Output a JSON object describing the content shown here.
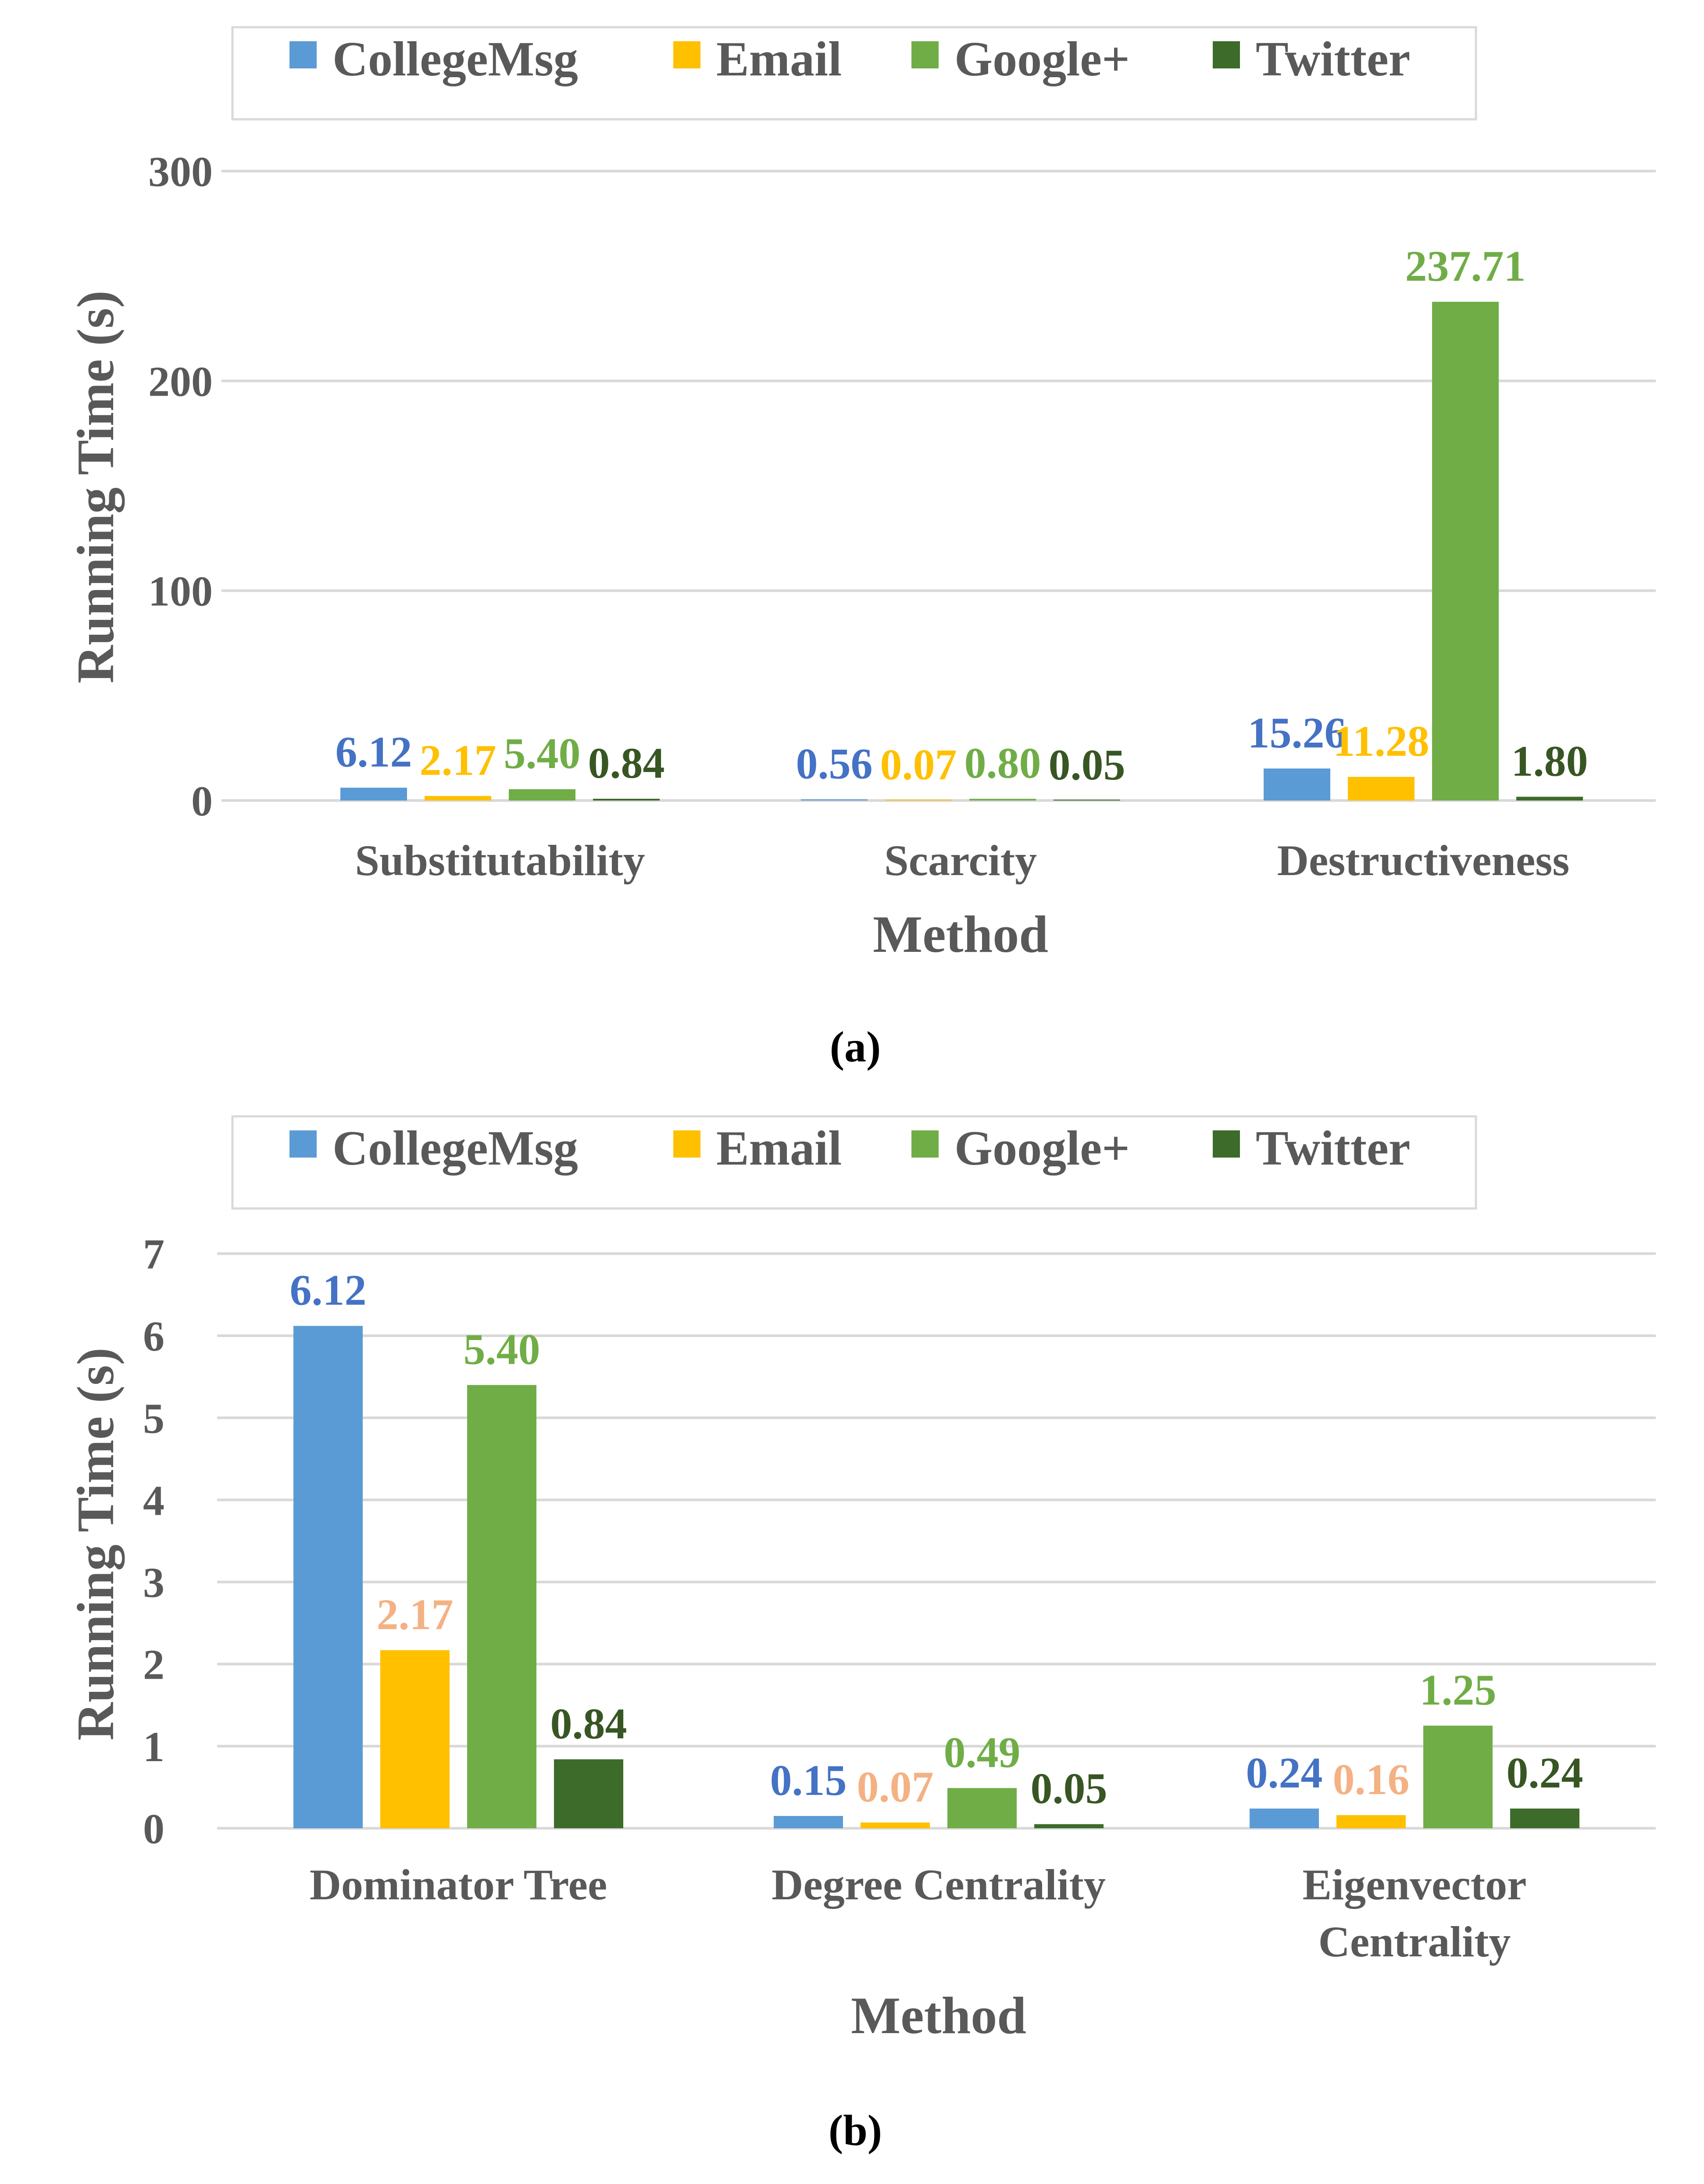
{
  "colors": {
    "CollegeMsg": "#5b9bd5",
    "Email": "#ffc000",
    "Google+": "#70ad47",
    "Twitter": "#3d6b2a",
    "label_blue": "#4472c4",
    "label_orange": "#f4b183",
    "label_gold": "#ffc000",
    "label_green": "#70ad47",
    "label_darkgreen": "#375623",
    "grid": "#d9d9d9",
    "axis_text": "#595959"
  },
  "chart_data": [
    {
      "id": "a",
      "type": "bar",
      "caption": "(a)",
      "title": "",
      "xlabel": "Method",
      "ylabel": "Running Time (s)",
      "ylim": [
        0,
        300
      ],
      "yticks": [
        "0",
        "100",
        "200",
        "300"
      ],
      "ytick_values": [
        0,
        100,
        200,
        300
      ],
      "legend": [
        "CollegeMsg",
        "Email",
        "Google+",
        "Twitter"
      ],
      "legend_position": "top",
      "categories": [
        [
          "Substitutability"
        ],
        [
          "Scarcity"
        ],
        [
          "Destructiveness"
        ]
      ],
      "series": [
        {
          "name": "CollegeMsg",
          "values": [
            6.12,
            0.56,
            15.26
          ],
          "labels": [
            "6.12",
            "0.56",
            "15.26"
          ],
          "label_color": "#4472c4"
        },
        {
          "name": "Email",
          "values": [
            2.17,
            0.07,
            11.28
          ],
          "labels": [
            "2.17",
            "0.07",
            "11.28"
          ],
          "label_color": "#ffc000"
        },
        {
          "name": "Google+",
          "values": [
            5.4,
            0.8,
            237.71
          ],
          "labels": [
            "5.40",
            "0.80",
            "237.71"
          ],
          "label_color": "#70ad47"
        },
        {
          "name": "Twitter",
          "values": [
            0.84,
            0.05,
            1.8
          ],
          "labels": [
            "0.84",
            "0.05",
            "1.80"
          ],
          "label_color": "#375623"
        }
      ]
    },
    {
      "id": "b",
      "type": "bar",
      "caption": "(b)",
      "title": "",
      "xlabel": "Method",
      "ylabel": "Running Time (s)",
      "ylim": [
        0,
        7
      ],
      "yticks": [
        "0",
        "1",
        "2",
        "3",
        "4",
        "5",
        "6",
        "7"
      ],
      "ytick_values": [
        0,
        1,
        2,
        3,
        4,
        5,
        6,
        7
      ],
      "legend": [
        "CollegeMsg",
        "Email",
        "Google+",
        "Twitter"
      ],
      "legend_position": "top",
      "categories": [
        [
          "Dominator Tree"
        ],
        [
          "Degree Centrality"
        ],
        [
          "Eigenvector",
          "Centrality"
        ]
      ],
      "series": [
        {
          "name": "CollegeMsg",
          "values": [
            6.12,
            0.15,
            0.24
          ],
          "labels": [
            "6.12",
            "0.15",
            "0.24"
          ],
          "label_color": "#4472c4"
        },
        {
          "name": "Email",
          "values": [
            2.17,
            0.07,
            0.16
          ],
          "labels": [
            "2.17",
            "0.07",
            "0.16"
          ],
          "label_color": "#f4b183"
        },
        {
          "name": "Google+",
          "values": [
            5.4,
            0.49,
            1.25
          ],
          "labels": [
            "5.40",
            "0.49",
            "1.25"
          ],
          "label_color": "#70ad47"
        },
        {
          "name": "Twitter",
          "values": [
            0.84,
            0.05,
            0.24
          ],
          "labels": [
            "0.84",
            "0.05",
            "0.24"
          ],
          "label_color": "#375623"
        }
      ]
    }
  ]
}
